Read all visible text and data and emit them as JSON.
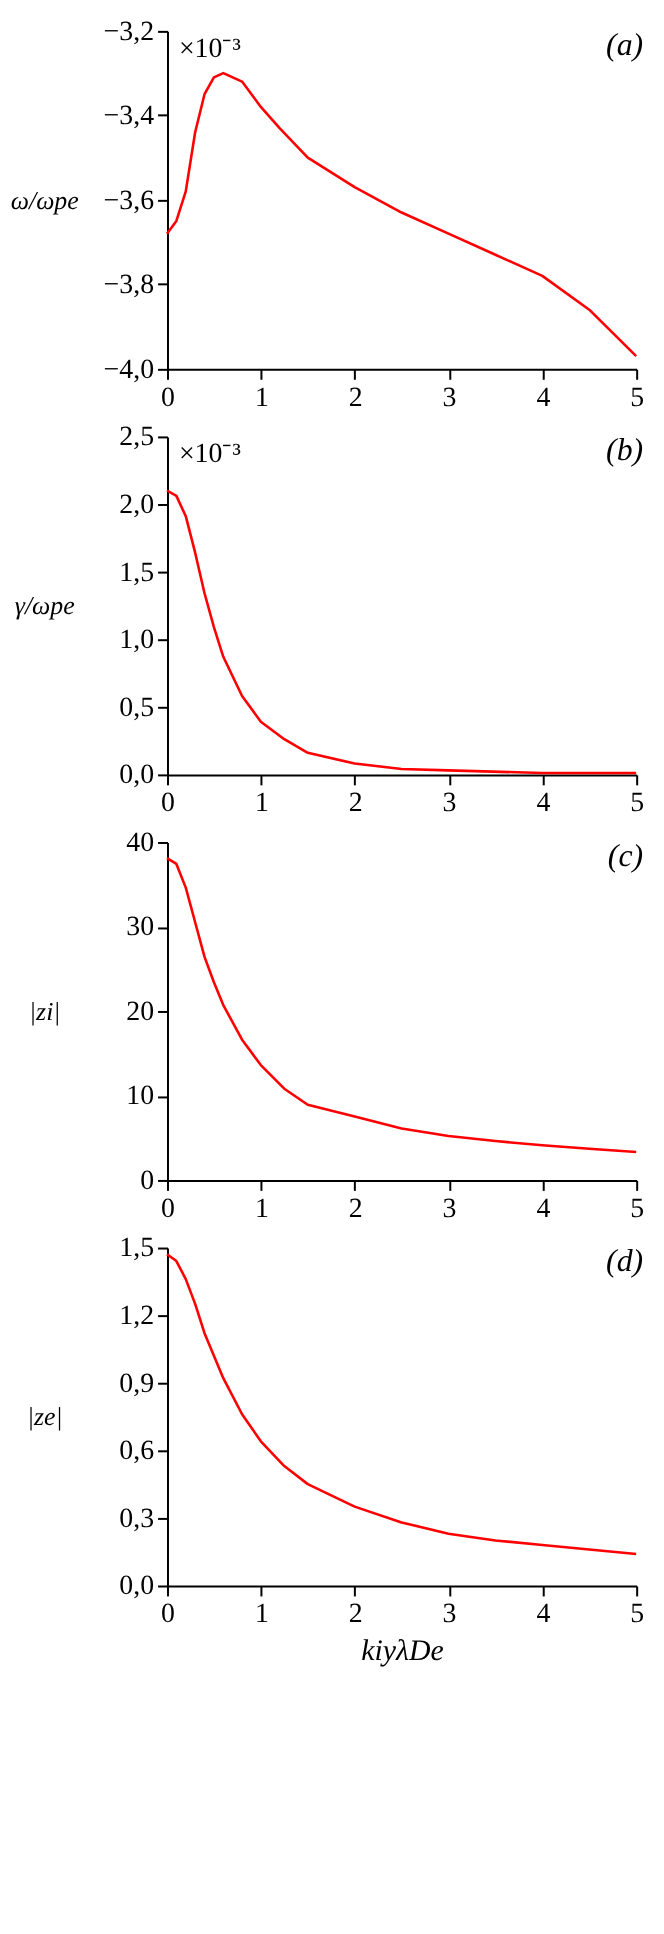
{
  "chart_data": [
    {
      "type": "line",
      "title": "(a)",
      "ylabel": "ω/ωpe",
      "annotations": [
        "×10⁻³"
      ],
      "x": [
        0,
        0.1,
        0.2,
        0.3,
        0.4,
        0.5,
        0.6,
        0.7,
        0.8,
        1.0,
        1.2,
        1.5,
        2.0,
        2.5,
        3.0,
        3.5,
        4.0,
        4.5,
        5.0
      ],
      "series": [
        {
          "color": "#ff0000",
          "values": [
            -3.68,
            -3.65,
            -3.58,
            -3.44,
            -3.35,
            -3.31,
            -3.3,
            -3.31,
            -3.32,
            -3.38,
            -3.43,
            -3.5,
            -3.57,
            -3.63,
            -3.68,
            -3.73,
            -3.78,
            -3.86,
            -3.97
          ]
        }
      ],
      "xlim": [
        0,
        5
      ],
      "xticks": [
        0,
        1,
        2,
        3,
        4,
        5
      ],
      "ylim": [
        -4.0,
        -3.2
      ],
      "yticks": [
        {
          "value": -4.0,
          "label": "−4,0"
        },
        {
          "value": -3.8,
          "label": "−3,8"
        },
        {
          "value": -3.6,
          "label": "−3,6"
        },
        {
          "value": -3.4,
          "label": "−3,4"
        },
        {
          "value": -3.2,
          "label": "−3,2"
        }
      ],
      "grid": false
    },
    {
      "type": "line",
      "title": "(b)",
      "ylabel": "γ/ωpe",
      "annotations": [
        "×10⁻³"
      ],
      "x": [
        0,
        0.1,
        0.2,
        0.3,
        0.4,
        0.5,
        0.6,
        0.8,
        1.0,
        1.25,
        1.5,
        2.0,
        2.5,
        3.0,
        4.0,
        5.0
      ],
      "series": [
        {
          "color": "#ff0000",
          "values": [
            2.1,
            2.06,
            1.91,
            1.64,
            1.34,
            1.09,
            0.87,
            0.58,
            0.39,
            0.26,
            0.16,
            0.08,
            0.04,
            0.03,
            0.01,
            0.01
          ]
        }
      ],
      "xlim": [
        0,
        5
      ],
      "xticks": [
        0,
        1,
        2,
        3,
        4,
        5
      ],
      "ylim": [
        0,
        2.5
      ],
      "yticks": [
        {
          "value": 0,
          "label": "0,0"
        },
        {
          "value": 0.5,
          "label": "0,5"
        },
        {
          "value": 1.0,
          "label": "1,0"
        },
        {
          "value": 1.5,
          "label": "1,5"
        },
        {
          "value": 2.0,
          "label": "2,0"
        },
        {
          "value": 2.5,
          "label": "2,5"
        }
      ],
      "grid": false
    },
    {
      "type": "line",
      "title": "(c)",
      "ylabel": "|zi|",
      "x": [
        0,
        0.1,
        0.2,
        0.3,
        0.4,
        0.5,
        0.6,
        0.8,
        1.0,
        1.25,
        1.5,
        2.0,
        2.5,
        3.0,
        3.5,
        4.0,
        4.5,
        5.0
      ],
      "series": [
        {
          "color": "#ff0000",
          "values": [
            38.1,
            37.4,
            34.6,
            30.5,
            26.4,
            23.4,
            20.7,
            16.6,
            13.6,
            10.8,
            8.9,
            7.5,
            6.1,
            5.2,
            4.6,
            4.1,
            3.7,
            3.3
          ]
        }
      ],
      "xlim": [
        0,
        5
      ],
      "xticks": [
        0,
        1,
        2,
        3,
        4,
        5
      ],
      "ylim": [
        0,
        40
      ],
      "yticks": [
        0,
        10,
        20,
        30,
        40
      ],
      "grid": false
    },
    {
      "type": "line",
      "title": "(d)",
      "ylabel": "|ze|",
      "xlabel": "kiyλDe",
      "x": [
        0,
        0.1,
        0.2,
        0.3,
        0.4,
        0.5,
        0.6,
        0.8,
        1.0,
        1.25,
        1.5,
        2.0,
        2.5,
        3.0,
        3.5,
        4.0,
        4.5,
        5.0
      ],
      "series": [
        {
          "color": "#ff0000",
          "values": [
            1.47,
            1.44,
            1.36,
            1.25,
            1.12,
            1.02,
            0.92,
            0.76,
            0.64,
            0.53,
            0.45,
            0.35,
            0.28,
            0.23,
            0.2,
            0.18,
            0.16,
            0.14
          ]
        }
      ],
      "xlim": [
        0,
        5
      ],
      "xticks": [
        0,
        1,
        2,
        3,
        4,
        5
      ],
      "ylim": [
        0,
        1.5
      ],
      "yticks": [
        {
          "value": 0,
          "label": "0,0"
        },
        {
          "value": 0.3,
          "label": "0,3"
        },
        {
          "value": 0.6,
          "label": "0,6"
        },
        {
          "value": 0.9,
          "label": "0,9"
        },
        {
          "value": 1.2,
          "label": "1,2"
        },
        {
          "value": 1.5,
          "label": "1,5"
        }
      ],
      "grid": false
    }
  ]
}
